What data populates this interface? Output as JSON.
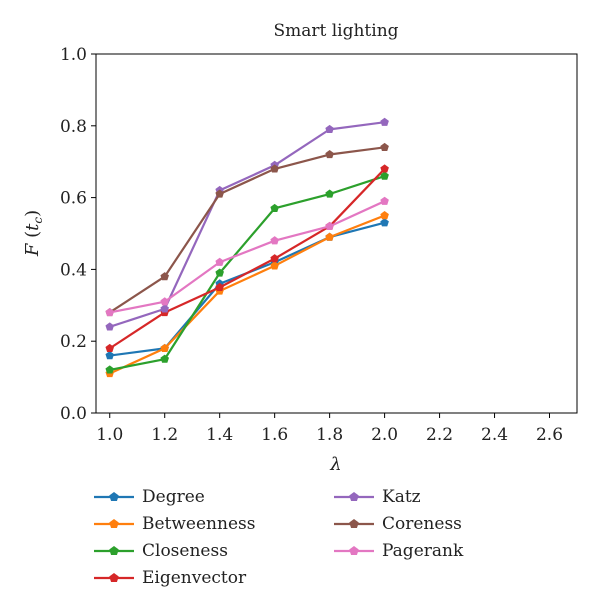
{
  "chart_data": {
    "type": "line",
    "title": "Smart lighting",
    "xlabel": "λ",
    "ylabel": "F (tc)",
    "xlim": [
      0.95,
      2.7
    ],
    "ylim": [
      0.0,
      1.0
    ],
    "xticks": [
      "1.0",
      "1.2",
      "1.4",
      "1.6",
      "1.8",
      "2.0",
      "2.2",
      "2.4",
      "2.6"
    ],
    "yticks": [
      "0.0",
      "0.2",
      "0.4",
      "0.6",
      "0.8",
      "1.0"
    ],
    "x": [
      1.0,
      1.2,
      1.4,
      1.6,
      1.8,
      2.0
    ],
    "grid": false,
    "legend_position": "bottom",
    "series": [
      {
        "name": "Degree",
        "color": "#1f77b4",
        "values": [
          0.16,
          0.18,
          0.36,
          0.42,
          0.49,
          0.53
        ]
      },
      {
        "name": "Betweenness",
        "color": "#ff7f0e",
        "values": [
          0.11,
          0.18,
          0.34,
          0.41,
          0.49,
          0.55
        ]
      },
      {
        "name": "Closeness",
        "color": "#2ca02c",
        "values": [
          0.12,
          0.15,
          0.39,
          0.57,
          0.61,
          0.66
        ]
      },
      {
        "name": "Eigenvector",
        "color": "#d62728",
        "values": [
          0.18,
          0.28,
          0.35,
          0.43,
          0.52,
          0.68
        ]
      },
      {
        "name": "Katz",
        "color": "#9467bd",
        "values": [
          0.24,
          0.29,
          0.62,
          0.69,
          0.79,
          0.81
        ]
      },
      {
        "name": "Coreness",
        "color": "#8c564b",
        "values": [
          0.28,
          0.38,
          0.61,
          0.68,
          0.72,
          0.74
        ]
      },
      {
        "name": "Pagerank",
        "color": "#e377c2",
        "values": [
          0.28,
          0.31,
          0.42,
          0.48,
          0.52,
          0.59
        ]
      }
    ]
  }
}
